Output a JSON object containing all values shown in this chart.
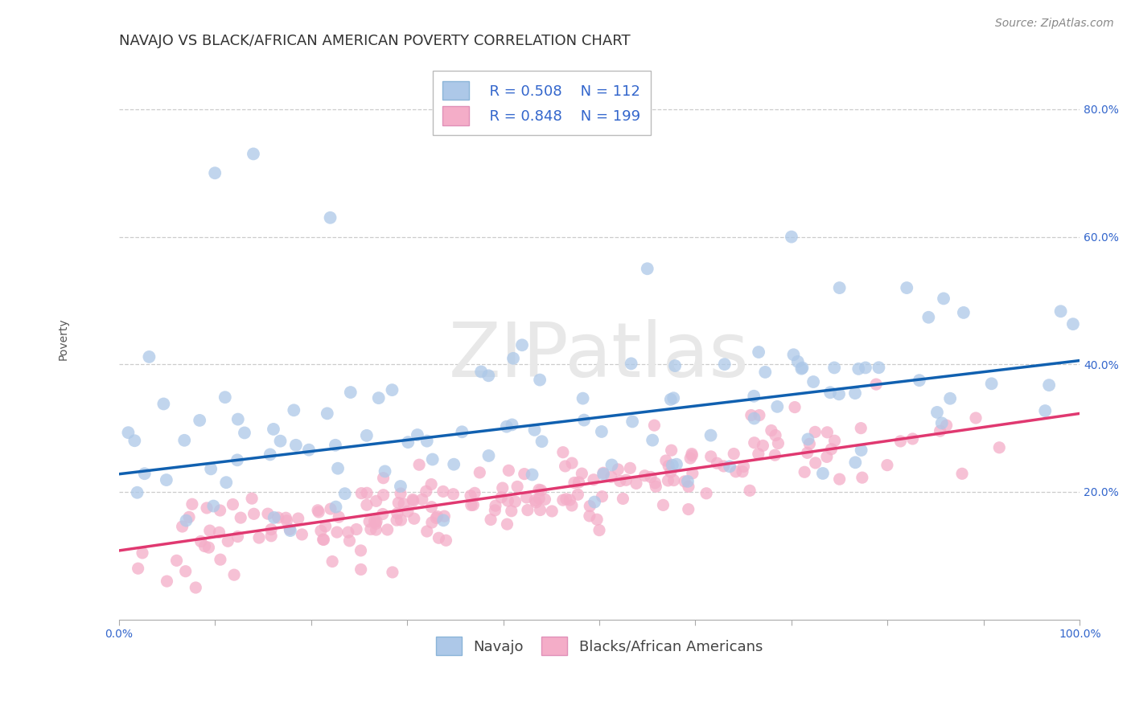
{
  "title": "NAVAJO VS BLACK/AFRICAN AMERICAN POVERTY CORRELATION CHART",
  "source": "Source: ZipAtlas.com",
  "ylabel": "Poverty",
  "xlim": [
    0,
    1
  ],
  "ylim": [
    0.0,
    0.88
  ],
  "yticks": [
    0.2,
    0.4,
    0.6,
    0.8
  ],
  "yticklabels": [
    "20.0%",
    "40.0%",
    "60.0%",
    "80.0%"
  ],
  "navajo_color": "#adc8e8",
  "black_color": "#f4adc8",
  "navajo_line_color": "#1060b0",
  "black_line_color": "#e03870",
  "navajo_edge_color": "#5590cc",
  "black_edge_color": "#d060a0",
  "legend_R_navajo": "R = 0.508",
  "legend_N_navajo": "N = 112",
  "legend_R_black": "R = 0.848",
  "legend_N_black": "N = 199",
  "legend_text_color": "#3366cc",
  "watermark": "ZIPatlas",
  "background_color": "#ffffff",
  "grid_color": "#cccccc",
  "navajo_intercept": 0.228,
  "navajo_slope": 0.178,
  "black_intercept": 0.108,
  "black_slope": 0.215,
  "title_fontsize": 13,
  "axis_label_fontsize": 10,
  "tick_fontsize": 10,
  "legend_fontsize": 13,
  "source_fontsize": 10
}
